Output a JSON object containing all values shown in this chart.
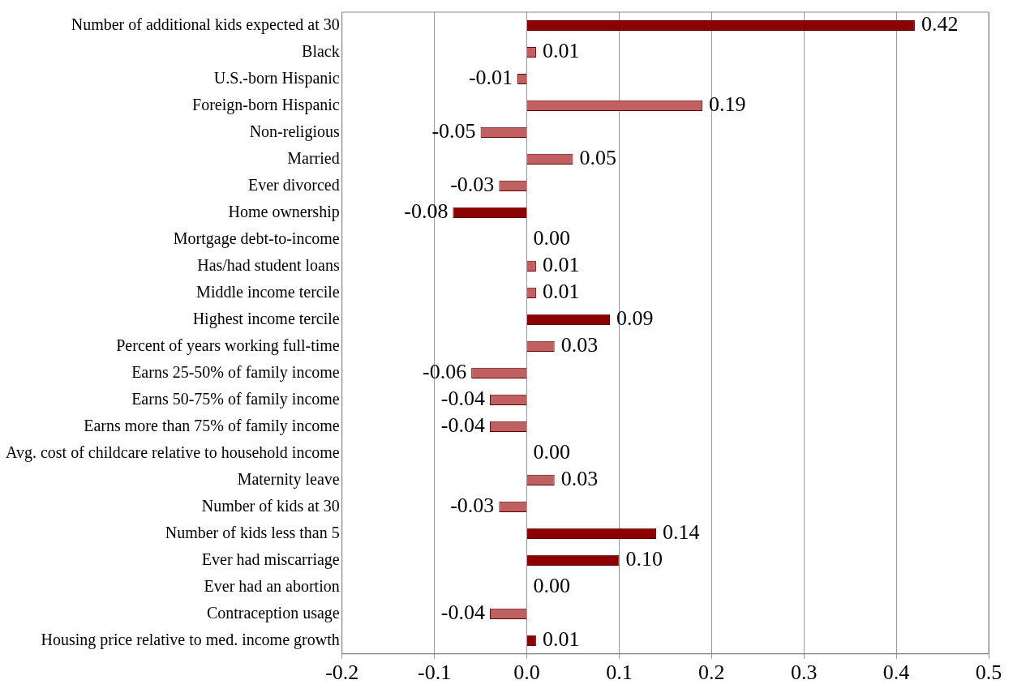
{
  "chart_data": {
    "type": "bar",
    "orientation": "horizontal",
    "categories": [
      "Number of additional kids expected at 30",
      "Black",
      "U.S.-born Hispanic",
      "Foreign-born Hispanic",
      "Non-religious",
      "Married",
      "Ever divorced",
      "Home ownership",
      "Mortgage debt-to-income",
      "Has/had student loans",
      "Middle income tercile",
      "Highest income tercile",
      "Percent of years working full-time",
      "Earns 25-50% of family income",
      "Earns 50-75% of family income",
      "Earns more than 75% of family income",
      "Avg. cost of childcare relative to household income",
      "Maternity leave",
      "Number of kids at 30",
      "Number of kids less than 5",
      "Ever had miscarriage",
      "Ever had an abortion",
      "Contraception usage",
      "Housing price relative to med. income growth"
    ],
    "values": [
      0.42,
      0.01,
      -0.01,
      0.19,
      -0.05,
      0.05,
      -0.03,
      -0.08,
      0,
      0.01,
      0.01,
      0.09,
      0.03,
      -0.06,
      -0.04,
      -0.04,
      0,
      0.03,
      -0.03,
      0.14,
      0.1,
      0,
      -0.04,
      0.01
    ],
    "value_labels": [
      "0.42",
      "0.01",
      "-0.01",
      "0.19",
      "-0.05",
      "0.05",
      "-0.03",
      "-0.08",
      "0.00",
      "0.01",
      "0.01",
      "0.09",
      "0.03",
      "-0.06",
      "-0.04",
      "-0.04",
      "0.00",
      "0.03",
      "-0.03",
      "0.14",
      "0.10",
      "0.00",
      "-0.04",
      "0.01"
    ],
    "colors": [
      "#8b0000",
      "#c06060",
      "#c06060",
      "#c06060",
      "#c06060",
      "#c06060",
      "#c06060",
      "#8b0000",
      "#c06060",
      "#c06060",
      "#c06060",
      "#8b0000",
      "#c06060",
      "#c06060",
      "#c06060",
      "#c06060",
      "#c06060",
      "#c06060",
      "#c06060",
      "#8b0000",
      "#8b0000",
      "#c06060",
      "#c06060",
      "#8b0000"
    ],
    "xlim": [
      -0.2,
      0.5
    ],
    "xticks": [
      -0.2,
      -0.1,
      {
        "value": 0,
        "label": "0.0"
      },
      0.1,
      0.2,
      0.3,
      0.4,
      0.5
    ],
    "grid": "x"
  }
}
